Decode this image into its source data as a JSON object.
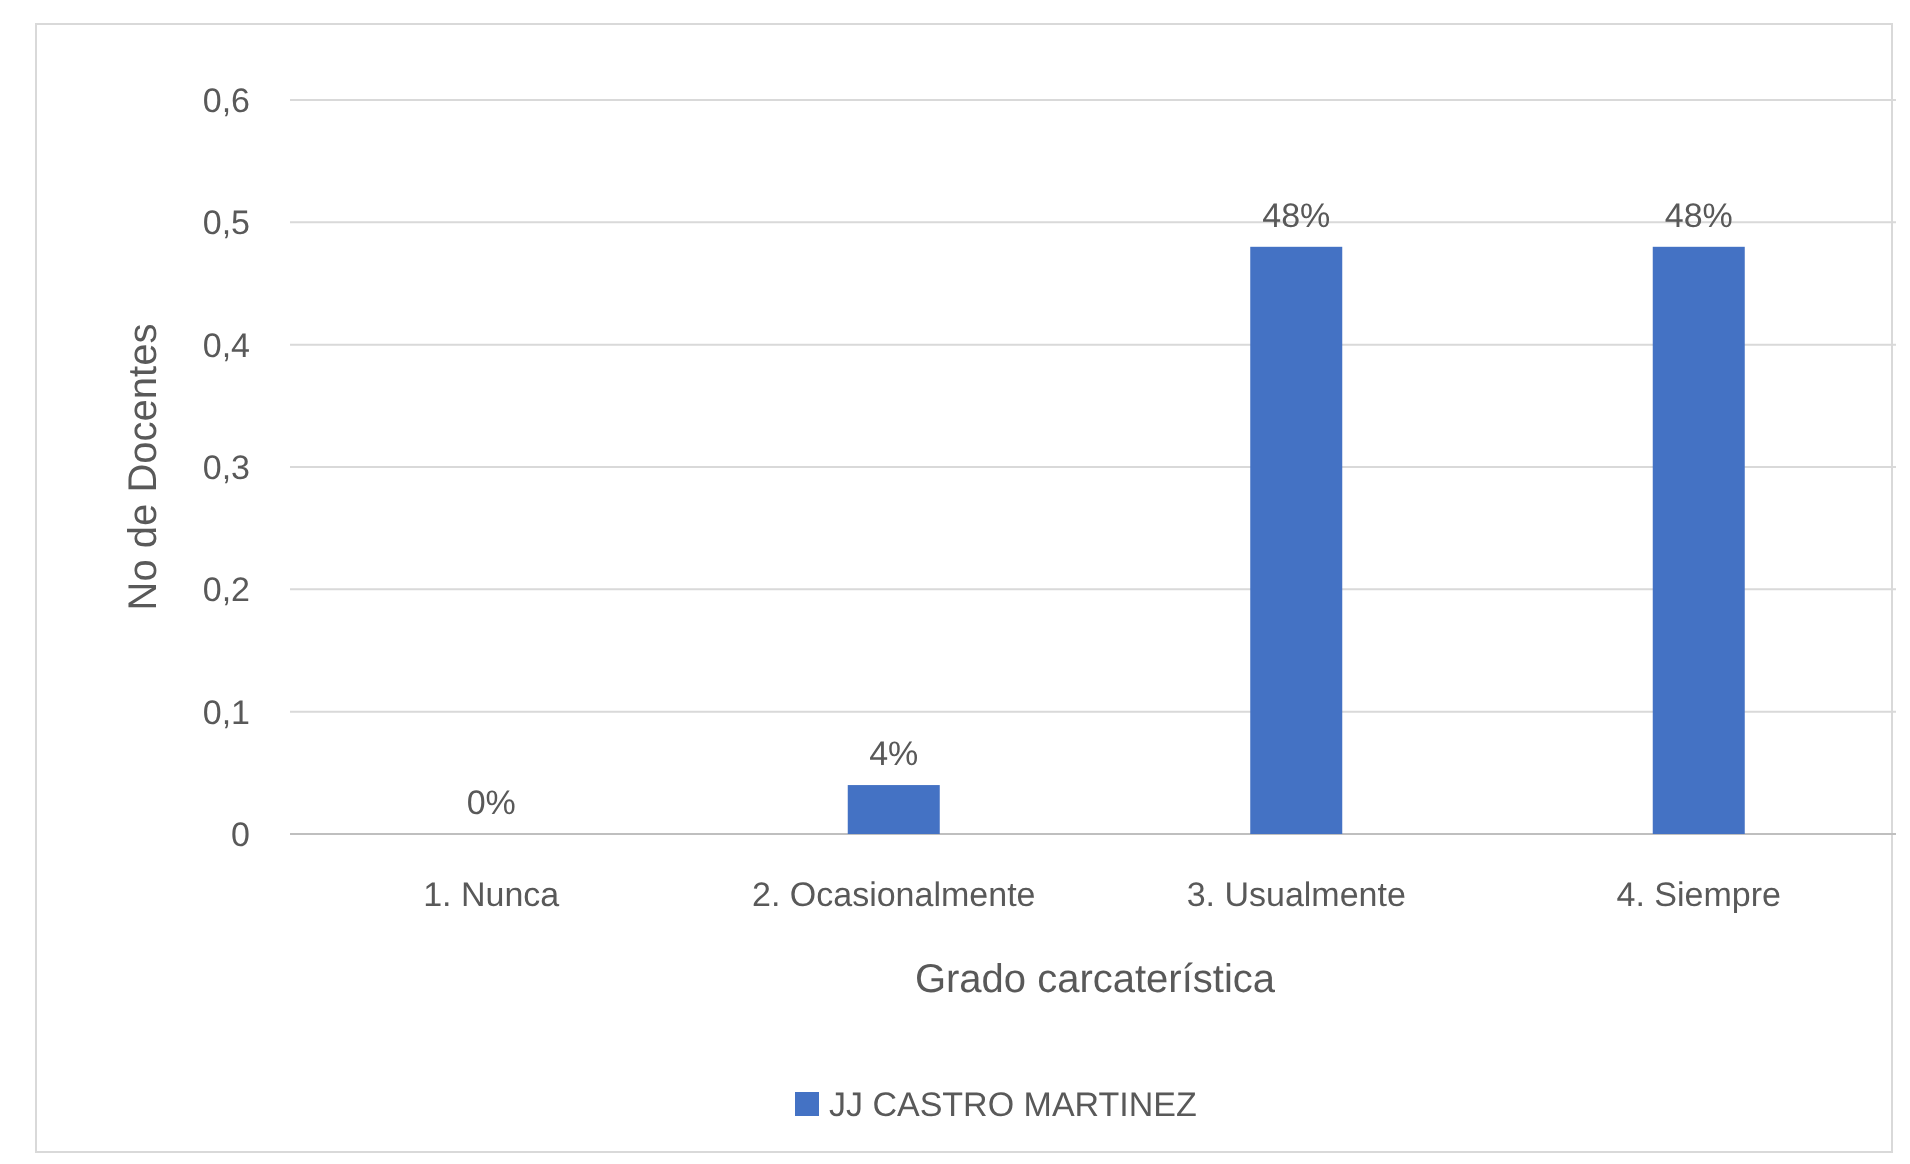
{
  "chart_data": {
    "type": "bar",
    "xlabel": "Grado carcaterística",
    "ylabel": "No de Docentes",
    "categories": [
      "1. Nunca",
      "2. Ocasionalmente",
      "3. Usualmente",
      "4. Siempre"
    ],
    "series": [
      {
        "name": "JJ CASTRO MARTINEZ",
        "color": "#4472c4",
        "values": [
          0,
          0.04,
          0.48,
          0.48
        ],
        "value_labels": [
          "0%",
          "4%",
          "48%",
          "48%"
        ]
      }
    ],
    "ylim": [
      0,
      0.6
    ],
    "yticks": [
      0,
      {
        "value": 0.1,
        "label": "0,1"
      },
      {
        "value": 0.2,
        "label": "0,2"
      },
      {
        "value": 0.3,
        "label": "0,3"
      },
      {
        "value": 0.4,
        "label": "0,4"
      },
      {
        "value": 0.5,
        "label": "0,5"
      },
      {
        "value": 0.6,
        "label": "0,6"
      }
    ],
    "grid": "y",
    "legend": "bottom"
  }
}
